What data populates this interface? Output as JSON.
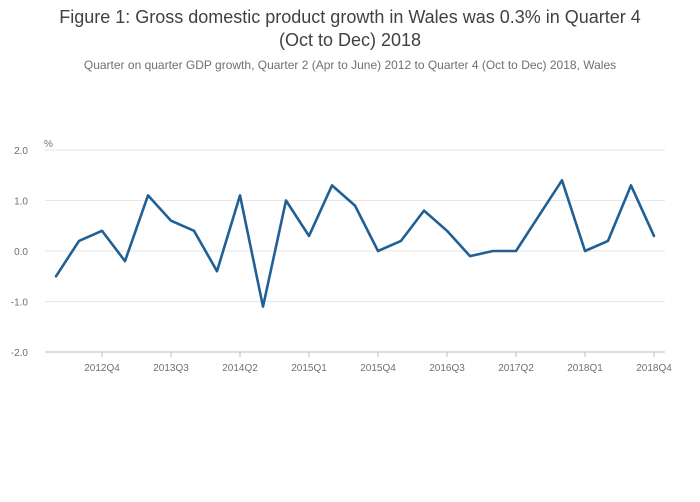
{
  "title_lines": [
    "Figure 1: Gross domestic product growth in Wales was 0.3% in Quarter 4",
    "(Oct to Dec) 2018"
  ],
  "subtitle": "Quarter on quarter GDP growth, Quarter 2 (Apr to June) 2012 to Quarter 4 (Oct to Dec) 2018, Wales",
  "chart_data": {
    "type": "line",
    "title": "Figure 1: Gross domestic product growth in Wales was 0.3% in Quarter 4 (Oct to Dec) 2018",
    "subtitle": "Quarter on quarter GDP growth, Quarter 2 (Apr to June) 2012 to Quarter 4 (Oct to Dec) 2018, Wales",
    "ylabel": "%",
    "ylim": [
      -2.0,
      2.0
    ],
    "yticks": [
      2.0,
      1.0,
      0.0,
      -1.0,
      -2.0
    ],
    "ytick_labels": [
      "2.0",
      "1.0",
      "0.0",
      "-1.0",
      "-2.0"
    ],
    "x": [
      "2012Q2",
      "2012Q3",
      "2012Q4",
      "2013Q1",
      "2013Q2",
      "2013Q3",
      "2013Q4",
      "2014Q1",
      "2014Q2",
      "2014Q3",
      "2014Q4",
      "2015Q1",
      "2015Q2",
      "2015Q3",
      "2015Q4",
      "2016Q1",
      "2016Q2",
      "2016Q3",
      "2016Q4",
      "2017Q1",
      "2017Q2",
      "2017Q3",
      "2017Q4",
      "2018Q1",
      "2018Q2",
      "2018Q3",
      "2018Q4"
    ],
    "xtick_labels": [
      "2012Q4",
      "2013Q3",
      "2014Q2",
      "2015Q1",
      "2015Q4",
      "2016Q3",
      "2017Q2",
      "2018Q1",
      "2018Q4"
    ],
    "grid": true,
    "series": [
      {
        "color": "#206095",
        "values": [
          -0.5,
          0.2,
          0.4,
          -0.2,
          1.1,
          0.6,
          0.4,
          -0.4,
          1.1,
          -1.1,
          1.0,
          0.3,
          1.3,
          0.9,
          0.0,
          0.2,
          0.8,
          0.4,
          -0.1,
          0.0,
          0.0,
          0.7,
          1.4,
          0.0,
          0.2,
          1.3,
          0.3
        ]
      }
    ]
  },
  "colors": {
    "line": "#206095",
    "grid": "#e6e6e6",
    "axis": "#bebebe",
    "tick_text": "#707071"
  }
}
